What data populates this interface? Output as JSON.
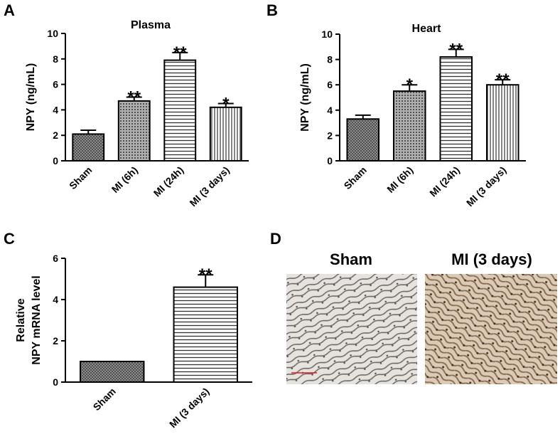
{
  "chart_data": [
    {
      "type": "bar",
      "panel": "A",
      "title": "Plasma",
      "ylabel": [
        "NPY (ng/mL)"
      ],
      "categories": [
        "Sham",
        "MI (6h)",
        "MI (24h)",
        "MI (3 days)"
      ],
      "values": [
        2.1,
        4.7,
        7.9,
        4.2
      ],
      "errors": [
        0.3,
        0.3,
        0.6,
        0.3
      ],
      "annotations": [
        null,
        "**",
        "**",
        "*"
      ],
      "patterns": [
        "crosshatch",
        "dots",
        "hlines",
        "vlines"
      ],
      "ylim": [
        0,
        10
      ],
      "yticks": [
        0,
        2,
        4,
        6,
        8,
        10
      ]
    },
    {
      "type": "bar",
      "panel": "B",
      "title": "Heart",
      "ylabel": [
        "NPY (ng/mL)"
      ],
      "categories": [
        "Sham",
        "MI (6h)",
        "MI (24h)",
        "MI (3 days)"
      ],
      "values": [
        3.3,
        5.5,
        8.2,
        6.0
      ],
      "errors": [
        0.3,
        0.5,
        0.6,
        0.4
      ],
      "annotations": [
        null,
        "*",
        "**",
        "**"
      ],
      "patterns": [
        "crosshatch",
        "dots",
        "hlines",
        "vlines"
      ],
      "ylim": [
        0,
        10
      ],
      "yticks": [
        0,
        2,
        4,
        6,
        8,
        10
      ]
    },
    {
      "type": "bar",
      "panel": "C",
      "ylabel": [
        "Relative",
        "NPY mRNA  level"
      ],
      "categories": [
        "Sham",
        "MI (3 days)"
      ],
      "values": [
        1.0,
        4.6
      ],
      "errors": [
        0,
        0.6
      ],
      "annotations": [
        null,
        "**"
      ],
      "patterns": [
        "crosshatch",
        "hlines"
      ],
      "ylim": [
        0,
        6
      ],
      "yticks": [
        0,
        2,
        4,
        6
      ]
    }
  ],
  "panel_d": {
    "panel": "D",
    "images": [
      {
        "label": "Sham"
      },
      {
        "label": "MI (3 days)"
      }
    ]
  }
}
